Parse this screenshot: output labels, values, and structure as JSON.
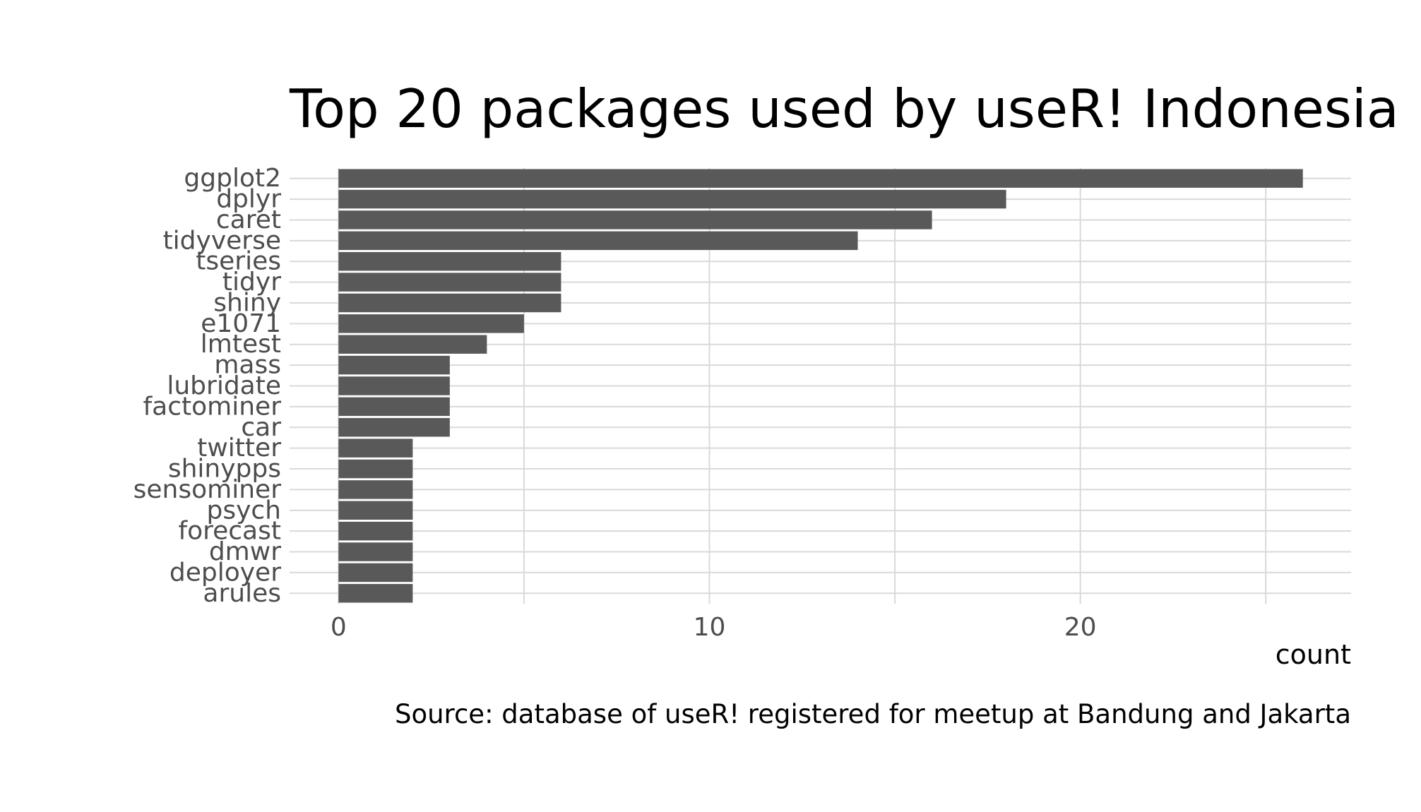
{
  "chart_data": {
    "type": "bar",
    "orientation": "horizontal",
    "title": "Top 20 packages used by useR! Indonesia",
    "xlabel": "count",
    "ylabel": "",
    "caption": "Source: database of useR! registered for meetup at Bandung and Jakarta",
    "categories": [
      "ggplot2",
      "dplyr",
      "caret",
      "tidyverse",
      "tseries",
      "tidyr",
      "shiny",
      "e1071",
      "lmtest",
      "mass",
      "lubridate",
      "factominer",
      "car",
      "twitter",
      "shinypps",
      "sensominer",
      "psych",
      "forecast",
      "dmwr",
      "deployer",
      "arules"
    ],
    "values": [
      26,
      18,
      16,
      14,
      6,
      6,
      6,
      5,
      4,
      3,
      3,
      3,
      3,
      2,
      2,
      2,
      2,
      2,
      2,
      2,
      2
    ],
    "x_ticks": [
      0,
      10,
      20
    ],
    "xlim": [
      -1.32,
      27.3
    ],
    "grid": true,
    "legend": "none",
    "colors": {
      "bar": "#595959",
      "grid": "#d9d9d9",
      "tick_label": "#4d4d4d",
      "text": "#000000"
    }
  }
}
